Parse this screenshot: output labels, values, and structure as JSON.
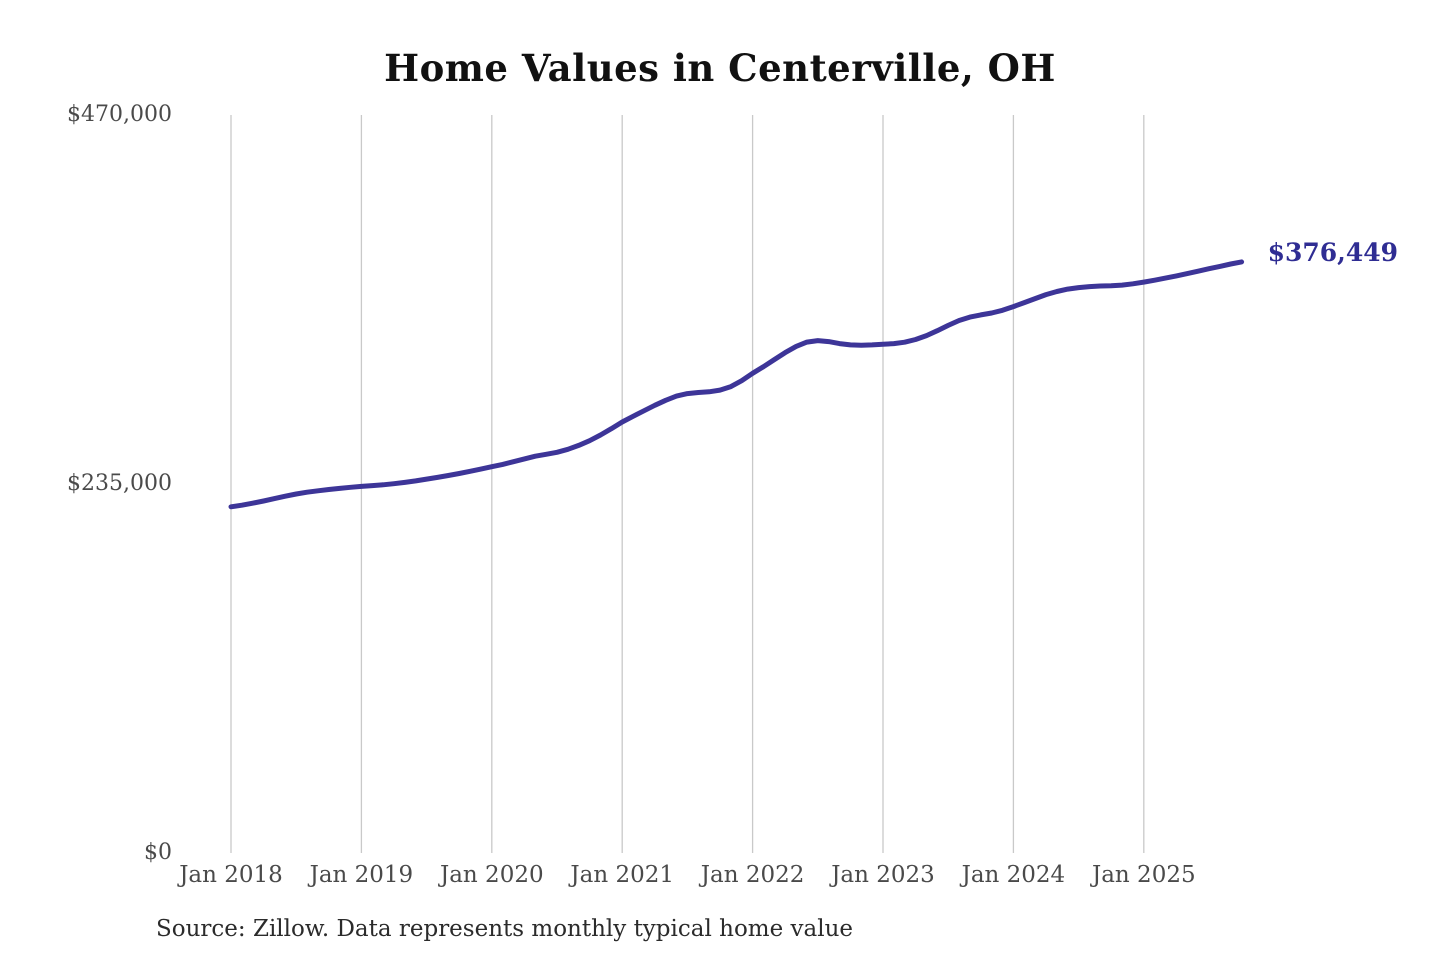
{
  "title": "Home Values in Centerville, OH",
  "source_note": "Source: Zillow. Data represents monthly typical home value",
  "colors": {
    "line": "#3d3598",
    "end_label": "#2f2d93",
    "grid": "#c9c9c9",
    "axis_text": "#4a4a4a",
    "title_text": "#111111",
    "background": "#ffffff"
  },
  "chart_data": {
    "type": "line",
    "title": "Home Values in Centerville, OH",
    "xlabel": "",
    "ylabel": "",
    "ylim": [
      0,
      470000
    ],
    "grid": "vertical-only",
    "legend": "none",
    "x_tick_labels": [
      "Jan 2018",
      "Jan 2019",
      "Jan 2020",
      "Jan 2021",
      "Jan 2022",
      "Jan 2023",
      "Jan 2024",
      "Jan 2025"
    ],
    "y_ticks": [
      {
        "label": "$470,000",
        "value": 470000
      },
      {
        "label": "$235,000",
        "value": 235000
      },
      {
        "label": "$0",
        "value": 0
      }
    ],
    "final_value": 376449,
    "final_value_label": "$376,449",
    "series": [
      {
        "name": "Monthly typical home value",
        "start_month": "2018-01",
        "end_month": "2025-10",
        "values": [
          220500,
          221500,
          222800,
          224200,
          225700,
          227200,
          228600,
          229800,
          230700,
          231500,
          232200,
          232900,
          233500,
          234000,
          234500,
          235200,
          236000,
          237000,
          238100,
          239200,
          240400,
          241700,
          243100,
          244500,
          246000,
          247500,
          249200,
          251000,
          252700,
          253900,
          255200,
          257100,
          259600,
          262600,
          266200,
          270200,
          274500,
          278100,
          281600,
          285100,
          288300,
          291000,
          292600,
          293300,
          293700,
          294800,
          297000,
          300800,
          305500,
          309700,
          314200,
          318700,
          322600,
          325400,
          326300,
          325700,
          324400,
          323600,
          323400,
          323600,
          324000,
          324400,
          325300,
          327000,
          329500,
          332600,
          336000,
          339100,
          341300,
          342700,
          343900,
          345600,
          348000,
          350500,
          353100,
          355600,
          357600,
          359100,
          360100,
          360700,
          361100,
          361300,
          361700,
          362500,
          363600,
          364800,
          366100,
          367500,
          369000,
          370500,
          372100,
          373600,
          375100,
          376449
        ]
      }
    ]
  }
}
